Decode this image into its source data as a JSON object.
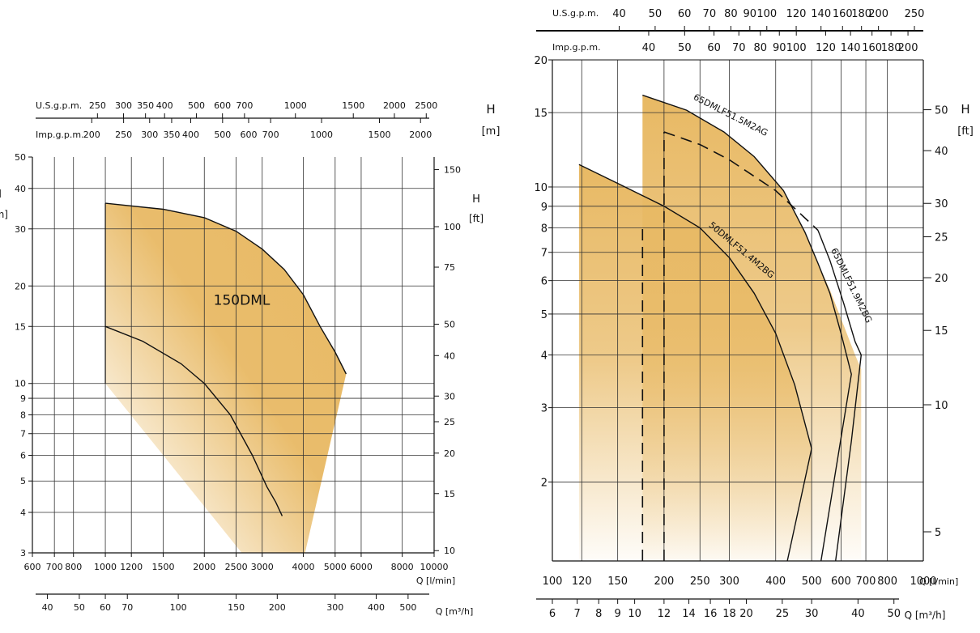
{
  "colors": {
    "fill": "#e8b964",
    "line": "#111111",
    "grid": "#333333"
  },
  "chart_data": [
    {
      "type": "area",
      "name": "150DML",
      "x_scale": "log",
      "y_scale": "log",
      "xlim": [
        600,
        10000
      ],
      "ylim": [
        3,
        50
      ],
      "xlabel": "Q [l/min]",
      "ylabel": "H [m]",
      "ylabel_right": "H [ft]",
      "x2label": "Q [m³/h]",
      "x_ticks": [
        600,
        700,
        800,
        1000,
        1200,
        1500,
        2000,
        2500,
        3000,
        4000,
        5000,
        6000,
        8000,
        10000
      ],
      "y_ticks": [
        3,
        4,
        5,
        6,
        7,
        8,
        9,
        10,
        15,
        20,
        30,
        40,
        50
      ],
      "ft_ticks": [
        10,
        15,
        20,
        25,
        30,
        40,
        50,
        75,
        100,
        150
      ],
      "m3h_ticks": [
        40,
        50,
        60,
        70,
        100,
        150,
        200,
        300,
        400,
        500
      ],
      "usgpm_label": "U.S.g.p.m.",
      "usgpm_ticks": [
        250,
        300,
        350,
        400,
        500,
        600,
        700,
        1000,
        1500,
        2000,
        2500
      ],
      "impgpm_label": "Imp.g.p.m.",
      "impgpm_ticks": [
        200,
        250,
        300,
        350,
        400,
        500,
        600,
        700,
        1000,
        1500,
        2000
      ],
      "grid": true,
      "area_label": "150DML",
      "envelope": {
        "x": [
          1000,
          1000,
          1500,
          2000,
          2500,
          3000,
          3500,
          4000,
          4500,
          5000,
          5400,
          4050,
          2600,
          1000
        ],
        "y": [
          10,
          36,
          34.5,
          32.5,
          29.5,
          26,
          22.5,
          18.8,
          15,
          12.5,
          10.7,
          3,
          3,
          10
        ]
      },
      "series": [
        {
          "x": [
            1000,
            1300,
            1700,
            2000,
            2400,
            2800,
            3100,
            3300,
            3450
          ],
          "y": [
            15,
            13.5,
            11.5,
            10,
            8,
            6,
            4.8,
            4.3,
            3.9
          ]
        }
      ]
    },
    {
      "type": "area",
      "x_scale": "log",
      "y_scale": "log",
      "xlim": [
        100,
        1000
      ],
      "ylim": [
        1.3,
        20
      ],
      "xlabel": "Q [l/min]",
      "ylabel": "H [m]",
      "ylabel_right": "H [ft]",
      "x2label": "Q [m³/h]",
      "x_ticks": [
        100,
        120,
        150,
        200,
        250,
        300,
        400,
        500,
        600,
        700,
        800
      ],
      "y_ticks": [
        2,
        3,
        4,
        5,
        6,
        7,
        8,
        9,
        10,
        15,
        20
      ],
      "ft_ticks": [
        5,
        10,
        15,
        20,
        25,
        30,
        40,
        50
      ],
      "m3h_ticks": [
        6,
        7,
        8,
        9,
        10,
        12,
        14,
        16,
        18,
        20,
        25,
        30,
        40,
        50
      ],
      "usgpm_label": "U.S.g.p.m.",
      "usgpm_ticks": [
        40,
        50,
        60,
        70,
        80,
        90,
        100,
        120,
        140,
        160,
        180,
        200,
        250
      ],
      "impgpm_label": "Imp.g.p.m.",
      "impgpm_ticks": [
        40,
        50,
        60,
        70,
        80,
        90,
        100,
        120,
        140,
        160,
        180,
        200
      ],
      "grid": true,
      "envelopes": [
        {
          "x": [
            118,
            118,
            150,
            200,
            250,
            300,
            350,
            400,
            450,
            500,
            500
          ],
          "y": [
            1.3,
            11.3,
            10.2,
            9,
            8,
            6.8,
            5.6,
            4.5,
            3.4,
            2.4,
            1.3
          ]
        },
        {
          "x": [
            175,
            175,
            230,
            290,
            350,
            420,
            480,
            520,
            560,
            610,
            655,
            680,
            680
          ],
          "y": [
            1.3,
            16.5,
            15.2,
            13.5,
            11.8,
            9.8,
            7.8,
            6.6,
            5.7,
            4.7,
            4,
            3.7,
            1.3
          ]
        }
      ],
      "series": [
        {
          "name": "50DMLF51.4M2BG",
          "x": [
            118,
            150,
            200,
            250,
            300,
            350,
            400,
            450,
            500,
            430
          ],
          "y": [
            11.3,
            10.2,
            9,
            8,
            6.8,
            5.6,
            4.5,
            3.4,
            2.4,
            1.3
          ]
        },
        {
          "name": "65DMLF51.5M2AG",
          "x": [
            175,
            230,
            290,
            350,
            420,
            480,
            520,
            560,
            600,
            630,
            640,
            530
          ],
          "y": [
            16.5,
            15.2,
            13.5,
            11.8,
            9.8,
            7.8,
            6.6,
            5.6,
            4.5,
            3.8,
            3.6,
            1.3
          ]
        },
        {
          "name": "65DMLF51.9M2BG",
          "x": [
            520,
            560,
            610,
            655,
            680,
            640,
            580
          ],
          "y": [
            7.9,
            6.7,
            5.3,
            4.3,
            4,
            2.5,
            1.3
          ]
        },
        {
          "x": [
            200,
            250,
            300,
            350,
            400,
            450,
            520
          ],
          "y": [
            13.5,
            12.6,
            11.6,
            10.6,
            9.8,
            8.9,
            7.9
          ],
          "dashed": true
        },
        {
          "x": [
            175,
            175
          ],
          "y": [
            1.3,
            8
          ],
          "dashed": true
        },
        {
          "x": [
            200,
            200
          ],
          "y": [
            1.3,
            13.5
          ],
          "dashed": true
        }
      ],
      "labels_on_curves": [
        "65DMLF51.5M2AG",
        "50DMLF51.4M2BG",
        "65DMLF51.9M2BG"
      ]
    }
  ]
}
